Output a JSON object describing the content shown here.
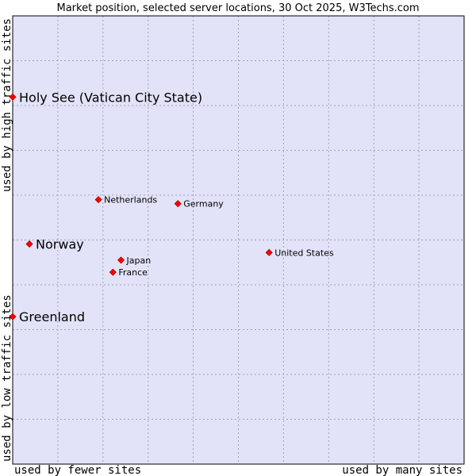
{
  "chart_data": {
    "type": "scatter",
    "title": "Market position, selected server locations, 30 Oct 2025, W3Techs.com",
    "xlabel_left": "used by fewer sites",
    "xlabel_right": "used by many sites",
    "ylabel_bottom": "used by low traffic sites",
    "ylabel_top": "used by high traffic sites",
    "xlim": [
      0,
      100
    ],
    "ylim": [
      0,
      100
    ],
    "grid": true,
    "colors": {
      "plot_background": "#e2e3f8",
      "grid": "#a0a0b8",
      "frame": "#000000",
      "marker": "#ff0000"
    },
    "points": [
      {
        "label": "Holy See (Vatican City State)",
        "x": 0.0,
        "y": 81.9,
        "emphasis": true
      },
      {
        "label": "Netherlands",
        "x": 19.0,
        "y": 59.0,
        "emphasis": false
      },
      {
        "label": "Germany",
        "x": 36.6,
        "y": 58.1,
        "emphasis": false
      },
      {
        "label": "Norway",
        "x": 3.7,
        "y": 49.1,
        "emphasis": true
      },
      {
        "label": "United States",
        "x": 56.8,
        "y": 47.2,
        "emphasis": false
      },
      {
        "label": "Japan",
        "x": 24.0,
        "y": 45.5,
        "emphasis": false
      },
      {
        "label": "France",
        "x": 22.2,
        "y": 42.8,
        "emphasis": false
      },
      {
        "label": "Greenland",
        "x": 0.0,
        "y": 32.9,
        "emphasis": true
      }
    ]
  }
}
